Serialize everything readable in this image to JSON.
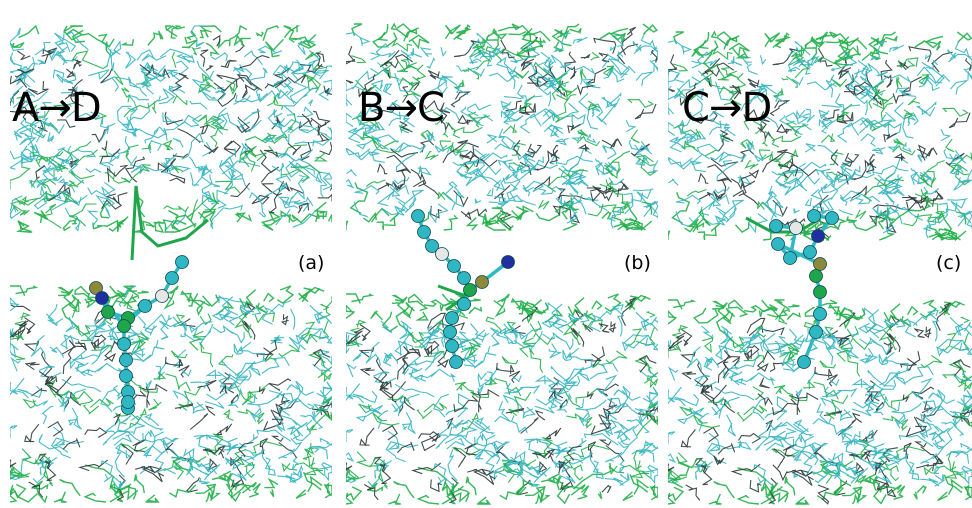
{
  "panels": [
    {
      "transition": "A→D",
      "letter": "(a)"
    },
    {
      "transition": "B→C",
      "letter": "(b)"
    },
    {
      "transition": "C→D",
      "letter": "(c)"
    }
  ],
  "colors": {
    "lipid_green": "#22b04a",
    "lipid_cyan": "#35b5c0",
    "lipid_dark": "#2a3a3a",
    "atom_cyan": "#2fb8c4",
    "atom_green": "#1fa64a",
    "atom_white": "#e6e6e6",
    "atom_blue": "#1f2fa0",
    "atom_olive": "#8c8a3a"
  }
}
